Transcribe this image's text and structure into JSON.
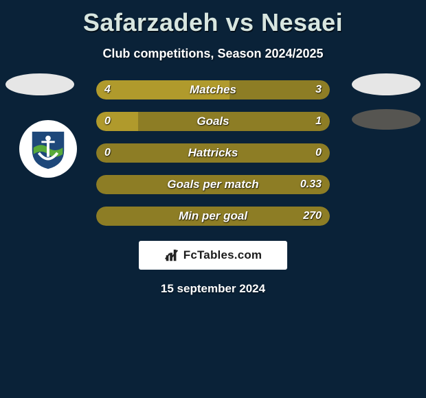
{
  "title": "Safarzadeh vs Nesaei",
  "subtitle": "Club competitions, Season 2024/2025",
  "date": "15 september 2024",
  "brand": "FcTables.com",
  "colors": {
    "background": "#0a2238",
    "title_color": "#d8e6e0",
    "text_color": "#ffffff",
    "oval_light": "#e6e6e6",
    "oval_dark": "#565551",
    "logo_bg": "#ffffff",
    "logo_shield": "#1e487a",
    "logo_wave": "#58aa3a",
    "bar_left_color": "#b09a2c",
    "bar_right_color": "#8d7d25",
    "bar_neutral_color": "#8d7d25",
    "brand_bg": "#ffffff",
    "brand_text": "#1b1b1b",
    "brand_icon": "#222222"
  },
  "fontsize": {
    "title": 36,
    "subtitle": 18,
    "bar_label": 17,
    "bar_value": 16,
    "date": 17,
    "brand": 17
  },
  "bars": [
    {
      "label": "Matches",
      "left_text": "4",
      "right_text": "3",
      "left_pct": 57,
      "right_pct": 43,
      "show_left_val": true,
      "show_right_val": true
    },
    {
      "label": "Goals",
      "left_text": "0",
      "right_text": "1",
      "left_pct": 18,
      "right_pct": 82,
      "show_left_val": true,
      "show_right_val": true
    },
    {
      "label": "Hattricks",
      "left_text": "0",
      "right_text": "0",
      "left_pct": 0,
      "right_pct": 100,
      "show_left_val": true,
      "show_right_val": true
    },
    {
      "label": "Goals per match",
      "left_text": "",
      "right_text": "0.33",
      "left_pct": 0,
      "right_pct": 100,
      "show_left_val": false,
      "show_right_val": true
    },
    {
      "label": "Min per goal",
      "left_text": "",
      "right_text": "270",
      "left_pct": 0,
      "right_pct": 100,
      "show_left_val": false,
      "show_right_val": true
    }
  ]
}
